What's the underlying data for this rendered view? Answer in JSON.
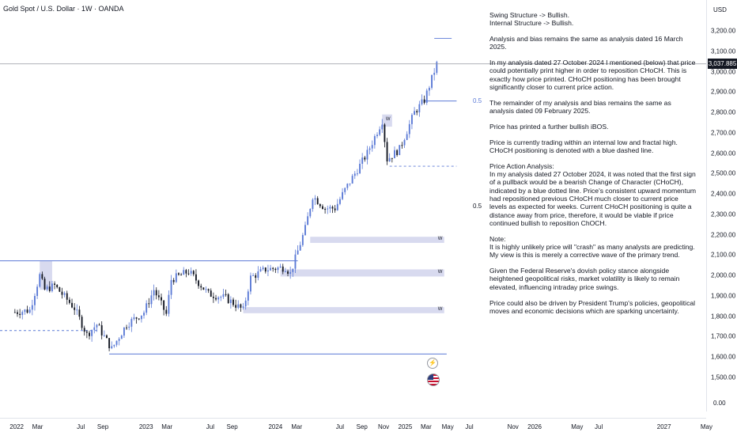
{
  "header": {
    "symbol": "Gold Spot / U.S. Dollar · 1W · OANDA"
  },
  "price_axis": {
    "currency": "USD",
    "ticks": [
      "3,200.00",
      "3,100.00",
      "3,000.00",
      "2,900.00",
      "2,800.00",
      "2,700.00",
      "2,600.00",
      "2,500.00",
      "2,400.00",
      "2,300.00",
      "2,200.00",
      "2,100.00",
      "2,000.00",
      "1,900.00",
      "1,800.00",
      "1,700.00",
      "1,600.00",
      "1,500.00"
    ],
    "zero_label": "0.00",
    "last_price": "3,037.885"
  },
  "time_axis": {
    "ticks": [
      "2022",
      "Mar",
      "Jul",
      "Sep",
      "2023",
      "Mar",
      "Jul",
      "Sep",
      "2024",
      "Mar",
      "Jul",
      "Sep",
      "Nov",
      "2025",
      "Mar",
      "May",
      "Jul",
      "Nov",
      "2026",
      "May",
      "Jul",
      "2027",
      "May"
    ]
  },
  "annotations": {
    "fib_upper": "0.5",
    "fib_lower": "0.5",
    "zone_label": "W",
    "small_zone_label": "W",
    "event_icon": "⚡"
  },
  "analysis": [
    "Swing Structure -> Bullish.\nInternal Structure -> Bullish.",
    "Analysis and bias remains the same as analysis dated 16 March 2025.",
    "In my analysis dated 27 October 2024 I mentioned (below) that price could potentially print higher in order to reposition CHoCH.  This is exactly how price printed.  CHoCH positioning has been brought significantly closer to current price action.",
    "The remainder of my analysis and bias remains the same as analysis dated 09 February 2025.",
    "Price has printed a further bullish iBOS.",
    "Price is currently trading within an internal low and fractal high.  CHoCH positioning is denoted with a blue dashed line.",
    "Price Action Analysis:\nIn my analysis dated 27 October 2024, it was noted that the first sign of a pullback would be a bearish Change of Character (CHoCH), indicated by a blue dotted line. Price's consistent upward momentum had repositioned previous CHoCH much closer to current price levels as expected for weeks. Current CHoCH positioning is quite a distance away from price, therefore, it would be viable if price continued bullish to reposition ChOCH.",
    "Note:\nIt is highly unlikely price will \"crash\" as many analysts are predicting.  My view is this is merely a corrective wave of the primary trend.",
    "Given the Federal Reserve's dovish policy stance alongside heightened geopolitical risks, market volatility is likely to remain elevated, influencing intraday price swings.",
    "Price could also be driven by President Trump's policies, geopolitical moves and economic decisions which are sparking uncertainty."
  ],
  "colors": {
    "up": "#5b7ad6",
    "down": "#131722",
    "zone": "#d1d4ec",
    "line": "#5b7ad6",
    "price_line": "#9598a1"
  },
  "chart_data": {
    "type": "candlestick",
    "title": "Gold Spot / U.S. Dollar · 1W · OANDA",
    "ylim": [
      1450,
      3280
    ],
    "y_scale": "linear",
    "grid": false,
    "last_price": 3037.885,
    "waypoints": [
      [
        "2021-12-27",
        1820
      ],
      [
        "2022-02-07",
        1830
      ],
      [
        "2022-03-07",
        2000
      ],
      [
        "2022-03-21",
        1930
      ],
      [
        "2022-04-18",
        1950
      ],
      [
        "2022-06-13",
        1840
      ],
      [
        "2022-07-18",
        1710
      ],
      [
        "2022-08-15",
        1760
      ],
      [
        "2022-09-26",
        1640
      ],
      [
        "2022-11-07",
        1760
      ],
      [
        "2022-12-26",
        1820
      ],
      [
        "2023-01-23",
        1930
      ],
      [
        "2023-02-27",
        1810
      ],
      [
        "2023-03-13",
        1980
      ],
      [
        "2023-05-01",
        2020
      ],
      [
        "2023-06-26",
        1910
      ],
      [
        "2023-08-14",
        1890
      ],
      [
        "2023-10-02",
        1830
      ],
      [
        "2023-10-23",
        1990
      ],
      [
        "2023-12-04",
        2030
      ],
      [
        "2024-01-29",
        2040
      ],
      [
        "2024-02-12",
        2010
      ],
      [
        "2024-03-25",
        2230
      ],
      [
        "2024-04-15",
        2390
      ],
      [
        "2024-05-20",
        2330
      ],
      [
        "2024-06-17",
        2330
      ],
      [
        "2024-07-15",
        2420
      ],
      [
        "2024-09-16",
        2600
      ],
      [
        "2024-10-28",
        2760
      ],
      [
        "2024-11-11",
        2570
      ],
      [
        "2024-12-16",
        2620
      ],
      [
        "2025-01-27",
        2800
      ],
      [
        "2025-02-24",
        2860
      ],
      [
        "2025-03-31",
        3037
      ]
    ],
    "zones": [
      {
        "label": "W",
        "start": "2024-04-08",
        "end": "2025-04-21",
        "low": 2160,
        "high": 2190
      },
      {
        "label": "W",
        "start": "2024-01-15",
        "end": "2025-04-21",
        "low": 1995,
        "high": 2030
      },
      {
        "label": "W",
        "start": "2023-10-02",
        "end": "2025-04-21",
        "low": 1815,
        "high": 1845
      },
      {
        "label": "W",
        "start": "2024-10-28",
        "end": "2024-11-25",
        "low": 2730,
        "high": 2790
      },
      {
        "label": "",
        "start": "2022-03-07",
        "end": "2022-04-11",
        "low": 1930,
        "high": 2070
      }
    ],
    "levels": [
      {
        "name": "swing-high",
        "value": 2072,
        "start": "2021-06-01",
        "end": "2024-03-04",
        "style": "solid"
      },
      {
        "name": "support",
        "value": 1615,
        "start": "2022-09-19",
        "end": "2025-04-28",
        "style": "solid"
      },
      {
        "name": "choch-2022",
        "value": 1730,
        "start": "2021-06-01",
        "end": "2022-08-22",
        "style": "dashed"
      },
      {
        "name": "choch-current",
        "value": 2536,
        "start": "2024-11-18",
        "end": "2025-05-26",
        "style": "dashed"
      },
      {
        "name": "fractal-high",
        "value": 3163,
        "start": "2025-03-24",
        "end": "2025-05-12",
        "style": "solid"
      },
      {
        "name": "internal-low",
        "value": 2856,
        "start": "2025-02-24",
        "end": "2025-05-26",
        "style": "solid"
      }
    ],
    "fib_levels": [
      {
        "label": "0.5",
        "value": 2856
      },
      {
        "label": "0.5",
        "value": 2337
      }
    ]
  }
}
